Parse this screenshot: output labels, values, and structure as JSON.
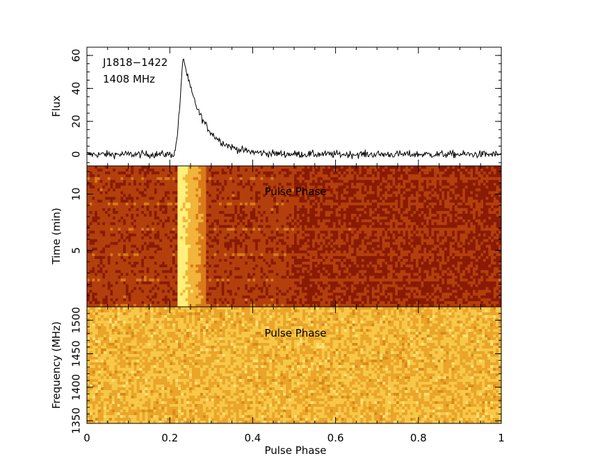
{
  "chart_data": [
    {
      "id": "profile",
      "type": "line",
      "source": "J1818−1422",
      "frequency_label": "1408 MHz",
      "ylabel": "Flux",
      "xlim": [
        0,
        1
      ],
      "ylim": [
        -7,
        65
      ],
      "yticks": [
        "0",
        "20",
        "40",
        "60"
      ],
      "yticks_values": [
        0,
        20,
        40,
        60
      ],
      "profile": {
        "baseline": 0,
        "noise_rms": 1.6,
        "rise_start_phase": 0.21,
        "peak_phase": 0.232,
        "peak_flux": 60,
        "decay_timescale_phase": 0.045
      }
    },
    {
      "id": "time-phase",
      "type": "heatmap",
      "ylabel": "Time (min)",
      "xlim": [
        0,
        1
      ],
      "ylim": [
        0,
        12.5
      ],
      "yticks": [
        "5",
        "10"
      ],
      "yticks_values": [
        5,
        10
      ],
      "overlay_label": "Pulse Phase",
      "colormap": [
        "#8a1a04",
        "#b3400c",
        "#d87a1a",
        "#f2b43a",
        "#fff07a"
      ],
      "pulse_band_phase": [
        0.22,
        0.29
      ]
    },
    {
      "id": "freq-phase",
      "type": "heatmap",
      "ylabel": "Frequency (MHz)",
      "xlabel": "Pulse Phase",
      "xlim": [
        0,
        1
      ],
      "ylim": [
        1346,
        1520
      ],
      "yticks": [
        "1350",
        "1400",
        "1450",
        "1500"
      ],
      "yticks_values": [
        1350,
        1400,
        1450,
        1500
      ],
      "xticks": [
        "0",
        "0.2",
        "0.4",
        "0.6",
        "0.8",
        "1"
      ],
      "xticks_values": [
        0,
        0.2,
        0.4,
        0.6,
        0.8,
        1
      ],
      "overlay_label": "Pulse Phase",
      "colormap": [
        "#d98a18",
        "#eaa52a",
        "#f7c848",
        "#fde070"
      ]
    }
  ]
}
